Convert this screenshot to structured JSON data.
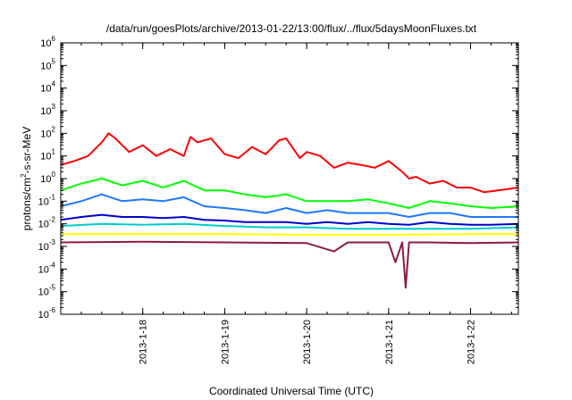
{
  "chart_data": {
    "type": "line",
    "title": "/data/run/goesPlots/archive/2013-01-22/13:00/flux/../flux/5daysMoonFluxes.txt",
    "xlabel": "Coordinated Universal Time (UTC)",
    "ylabel": {
      "prefix": "protons/cm",
      "superscript": "2",
      "suffix": "-s-sr-MeV"
    },
    "x_axis": {
      "unit": "days",
      "range": [
        "2013-01-17T00:00",
        "2013-01-22T14:00"
      ],
      "ticks": [
        "2013-1-18",
        "2013-1-19",
        "2013-1-20",
        "2013-1-21",
        "2013-1-22"
      ]
    },
    "y_axis": {
      "scale": "log",
      "range": [
        1e-06,
        1000000.0
      ],
      "tick_labels": [
        {
          "base": "10",
          "exp": "-6"
        },
        {
          "base": "10",
          "exp": "-5"
        },
        {
          "base": "10",
          "exp": "-4"
        },
        {
          "base": "10",
          "exp": "-3"
        },
        {
          "base": "10",
          "exp": "-2"
        },
        {
          "base": "10",
          "exp": "-1"
        },
        {
          "base": "10",
          "exp": "0"
        },
        {
          "base": "10",
          "exp": "1"
        },
        {
          "base": "10",
          "exp": "2"
        },
        {
          "base": "10",
          "exp": "3"
        },
        {
          "base": "10",
          "exp": "4"
        },
        {
          "base": "10",
          "exp": "5"
        },
        {
          "base": "10",
          "exp": "6"
        }
      ]
    },
    "grid": false,
    "legend": "none",
    "series": [
      {
        "color": "#ff0000",
        "x": [
          "2013-01-17T00:00",
          "2013-01-17T04:00",
          "2013-01-17T08:00",
          "2013-01-17T12:00",
          "2013-01-17T14:00",
          "2013-01-17T16:00",
          "2013-01-17T20:00",
          "2013-01-18T00:00",
          "2013-01-18T04:00",
          "2013-01-18T08:00",
          "2013-01-18T12:00",
          "2013-01-18T14:00",
          "2013-01-18T16:00",
          "2013-01-18T20:00",
          "2013-01-19T00:00",
          "2013-01-19T04:00",
          "2013-01-19T08:00",
          "2013-01-19T12:00",
          "2013-01-19T16:00",
          "2013-01-19T18:00",
          "2013-01-19T22:00",
          "2013-01-20T00:00",
          "2013-01-20T04:00",
          "2013-01-20T08:00",
          "2013-01-20T12:00",
          "2013-01-20T16:00",
          "2013-01-20T20:00",
          "2013-01-21T00:00",
          "2013-01-21T04:00",
          "2013-01-21T06:00",
          "2013-01-21T08:00",
          "2013-01-21T12:00",
          "2013-01-21T16:00",
          "2013-01-21T20:00",
          "2013-01-22T00:00",
          "2013-01-22T04:00",
          "2013-01-22T08:00",
          "2013-01-22T14:00"
        ],
        "y": [
          4,
          6,
          10,
          40,
          100,
          60,
          15,
          30,
          10,
          20,
          10,
          70,
          40,
          60,
          12,
          8,
          25,
          12,
          50,
          60,
          8,
          15,
          10,
          3,
          5,
          4,
          3,
          6,
          2,
          1,
          1.2,
          0.6,
          0.8,
          0.4,
          0.4,
          0.25,
          0.3,
          0.4
        ]
      },
      {
        "color": "#00ff00",
        "x": [
          "2013-01-17T00:00",
          "2013-01-17T06:00",
          "2013-01-17T12:00",
          "2013-01-17T18:00",
          "2013-01-18T00:00",
          "2013-01-18T06:00",
          "2013-01-18T12:00",
          "2013-01-18T18:00",
          "2013-01-19T00:00",
          "2013-01-19T06:00",
          "2013-01-19T12:00",
          "2013-01-19T18:00",
          "2013-01-20T00:00",
          "2013-01-20T06:00",
          "2013-01-20T12:00",
          "2013-01-20T18:00",
          "2013-01-21T00:00",
          "2013-01-21T06:00",
          "2013-01-21T12:00",
          "2013-01-21T18:00",
          "2013-01-22T00:00",
          "2013-01-22T06:00",
          "2013-01-22T14:00"
        ],
        "y": [
          0.3,
          0.6,
          1.0,
          0.5,
          0.8,
          0.4,
          0.8,
          0.3,
          0.3,
          0.2,
          0.15,
          0.2,
          0.1,
          0.1,
          0.1,
          0.12,
          0.08,
          0.05,
          0.1,
          0.08,
          0.06,
          0.05,
          0.06
        ]
      },
      {
        "color": "#1e78ff",
        "x": [
          "2013-01-17T00:00",
          "2013-01-17T06:00",
          "2013-01-17T12:00",
          "2013-01-17T18:00",
          "2013-01-18T00:00",
          "2013-01-18T06:00",
          "2013-01-18T12:00",
          "2013-01-18T18:00",
          "2013-01-19T00:00",
          "2013-01-19T06:00",
          "2013-01-19T12:00",
          "2013-01-19T18:00",
          "2013-01-20T00:00",
          "2013-01-20T06:00",
          "2013-01-20T12:00",
          "2013-01-20T18:00",
          "2013-01-21T00:00",
          "2013-01-21T06:00",
          "2013-01-21T12:00",
          "2013-01-21T18:00",
          "2013-01-22T00:00",
          "2013-01-22T06:00",
          "2013-01-22T14:00"
        ],
        "y": [
          0.06,
          0.1,
          0.2,
          0.1,
          0.12,
          0.1,
          0.15,
          0.06,
          0.05,
          0.04,
          0.03,
          0.05,
          0.03,
          0.04,
          0.03,
          0.03,
          0.03,
          0.02,
          0.03,
          0.03,
          0.02,
          0.02,
          0.02
        ]
      },
      {
        "color": "#0000cc",
        "x": [
          "2013-01-17T00:00",
          "2013-01-17T06:00",
          "2013-01-17T12:00",
          "2013-01-17T18:00",
          "2013-01-18T00:00",
          "2013-01-18T06:00",
          "2013-01-18T12:00",
          "2013-01-18T18:00",
          "2013-01-19T00:00",
          "2013-01-19T06:00",
          "2013-01-19T12:00",
          "2013-01-19T18:00",
          "2013-01-20T00:00",
          "2013-01-20T06:00",
          "2013-01-20T12:00",
          "2013-01-20T18:00",
          "2013-01-21T00:00",
          "2013-01-21T06:00",
          "2013-01-21T12:00",
          "2013-01-21T18:00",
          "2013-01-22T00:00",
          "2013-01-22T06:00",
          "2013-01-22T14:00"
        ],
        "y": [
          0.015,
          0.02,
          0.025,
          0.02,
          0.02,
          0.018,
          0.02,
          0.015,
          0.014,
          0.012,
          0.012,
          0.012,
          0.01,
          0.012,
          0.01,
          0.012,
          0.01,
          0.009,
          0.012,
          0.01,
          0.009,
          0.009,
          0.01
        ]
      },
      {
        "color": "#00cccc",
        "x": [
          "2013-01-17T00:00",
          "2013-01-17T12:00",
          "2013-01-18T00:00",
          "2013-01-18T12:00",
          "2013-01-19T00:00",
          "2013-01-19T12:00",
          "2013-01-20T00:00",
          "2013-01-20T12:00",
          "2013-01-21T00:00",
          "2013-01-21T12:00",
          "2013-01-22T00:00",
          "2013-01-22T14:00"
        ],
        "y": [
          0.008,
          0.01,
          0.009,
          0.01,
          0.008,
          0.007,
          0.007,
          0.006,
          0.006,
          0.006,
          0.006,
          0.007
        ]
      },
      {
        "color": "#ffff00",
        "x": [
          "2013-01-17T00:00",
          "2013-01-18T00:00",
          "2013-01-19T00:00",
          "2013-01-20T00:00",
          "2013-01-21T00:00",
          "2013-01-22T00:00",
          "2013-01-22T14:00"
        ],
        "y": [
          0.0035,
          0.0035,
          0.0035,
          0.0033,
          0.0033,
          0.0035,
          0.0035
        ]
      },
      {
        "color": "#8b1a4a",
        "x": [
          "2013-01-17T00:00",
          "2013-01-18T00:00",
          "2013-01-19T00:00",
          "2013-01-20T00:00",
          "2013-01-20T08:00",
          "2013-01-20T12:00",
          "2013-01-21T00:00",
          "2013-01-21T02:00",
          "2013-01-21T04:00",
          "2013-01-21T05:00",
          "2013-01-21T06:00",
          "2013-01-21T12:00",
          "2013-01-22T00:00",
          "2013-01-22T14:00"
        ],
        "y": [
          0.0015,
          0.0016,
          0.0015,
          0.0014,
          0.0006,
          0.0015,
          0.0015,
          0.0002,
          0.0015,
          1.5e-05,
          0.0015,
          0.0015,
          0.0014,
          0.0015
        ]
      }
    ]
  }
}
